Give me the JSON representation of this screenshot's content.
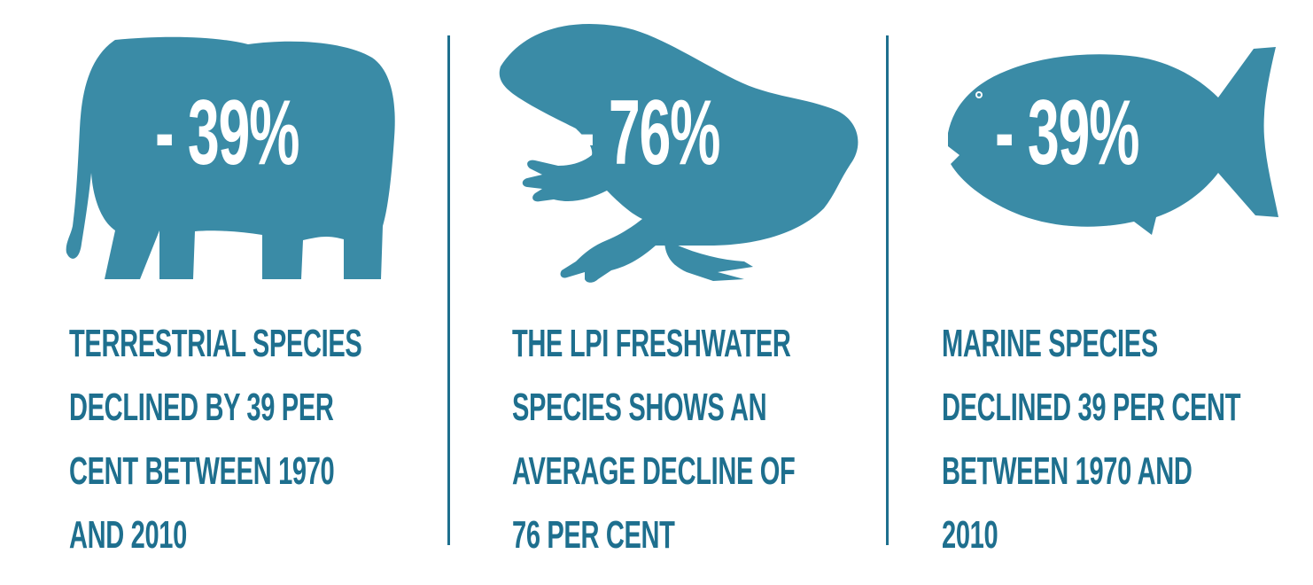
{
  "colors": {
    "animal": "#3a8ba6",
    "text": "#1e6f8e",
    "divider": "#1e6f8e"
  },
  "panels": [
    {
      "icon": "elephant-icon",
      "percent": "- 39%",
      "caption": [
        "TERRESTRIAL SPECIES",
        "DECLINED BY 39 PER",
        "CENT BETWEEN 1970",
        "AND 2010"
      ]
    },
    {
      "icon": "frog-icon",
      "percent": "- 76%",
      "caption": [
        "THE LPI FRESHWATER",
        "SPECIES SHOWS AN",
        "AVERAGE DECLINE OF",
        "76 PER CENT"
      ]
    },
    {
      "icon": "fish-icon",
      "percent": "- 39%",
      "caption": [
        "MARINE SPECIES",
        "DECLINED 39 PER CENT",
        "BETWEEN 1970 AND",
        "2010"
      ]
    }
  ]
}
